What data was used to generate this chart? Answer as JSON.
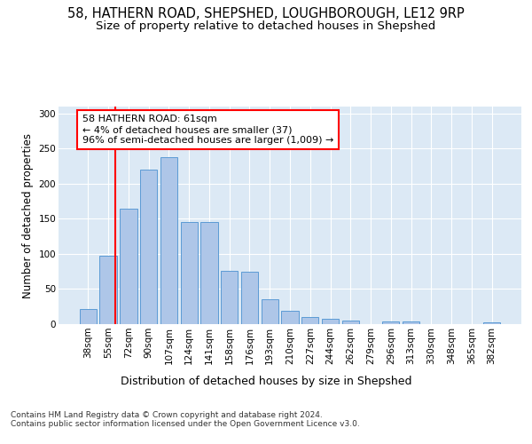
{
  "title1": "58, HATHERN ROAD, SHEPSHED, LOUGHBOROUGH, LE12 9RP",
  "title2": "Size of property relative to detached houses in Shepshed",
  "xlabel": "Distribution of detached houses by size in Shepshed",
  "ylabel": "Number of detached properties",
  "bar_labels": [
    "38sqm",
    "55sqm",
    "72sqm",
    "90sqm",
    "107sqm",
    "124sqm",
    "141sqm",
    "158sqm",
    "176sqm",
    "193sqm",
    "210sqm",
    "227sqm",
    "244sqm",
    "262sqm",
    "279sqm",
    "296sqm",
    "313sqm",
    "330sqm",
    "348sqm",
    "365sqm",
    "382sqm"
  ],
  "bar_values": [
    22,
    97,
    165,
    220,
    238,
    145,
    145,
    76,
    75,
    35,
    19,
    10,
    8,
    5,
    0,
    4,
    4,
    0,
    0,
    0,
    2
  ],
  "bar_color": "#aec6e8",
  "bar_edge_color": "#5b9bd5",
  "annotation_box_text": "58 HATHERN ROAD: 61sqm\n← 4% of detached houses are smaller (37)\n96% of semi-detached houses are larger (1,009) →",
  "annotation_box_color": "white",
  "annotation_box_edge_color": "red",
  "annotation_line_color": "red",
  "ylim": [
    0,
    310
  ],
  "yticks": [
    0,
    50,
    100,
    150,
    200,
    250,
    300
  ],
  "footnote": "Contains HM Land Registry data © Crown copyright and database right 2024.\nContains public sector information licensed under the Open Government Licence v3.0.",
  "bg_color": "#dce9f5",
  "fig_bg_color": "#ffffff",
  "title1_fontsize": 10.5,
  "title2_fontsize": 9.5,
  "xlabel_fontsize": 9,
  "ylabel_fontsize": 8.5,
  "tick_fontsize": 7.5,
  "annotation_fontsize": 8,
  "footnote_fontsize": 6.5
}
